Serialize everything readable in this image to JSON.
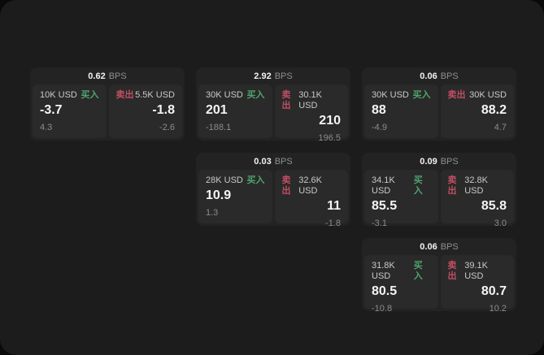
{
  "page": {
    "background_outer": "#0a0a0a",
    "background_page": "#1c1c1c",
    "card_background": "#232323",
    "panel_background": "#2a2a2a"
  },
  "labels": {
    "bps": "BPS",
    "buy": "买入",
    "sell": "卖出"
  },
  "colors": {
    "buy": "#4fa46e",
    "sell": "#c04f63",
    "price": "#f5f5f5",
    "delta": "#8c8c8c",
    "amount": "#c9c9c9"
  },
  "cards": [
    {
      "bps": "0.62",
      "grid": {
        "col": 1,
        "row": 1
      },
      "buy": {
        "amount": "10K USD",
        "price": "-3.7",
        "delta": "4.3"
      },
      "sell": {
        "amount": "5.5K USD",
        "price": "-1.8",
        "delta": "-2.6"
      }
    },
    {
      "bps": "2.92",
      "grid": {
        "col": 2,
        "row": 1
      },
      "buy": {
        "amount": "30K USD",
        "price": "201",
        "delta": "-188.1"
      },
      "sell": {
        "amount": "30.1K USD",
        "price": "210",
        "delta": "196.5"
      }
    },
    {
      "bps": "0.06",
      "grid": {
        "col": 3,
        "row": 1
      },
      "buy": {
        "amount": "30K USD",
        "price": "88",
        "delta": "-4.9"
      },
      "sell": {
        "amount": "30K USD",
        "price": "88.2",
        "delta": "4.7"
      }
    },
    {
      "bps": "0.03",
      "grid": {
        "col": 2,
        "row": 2
      },
      "buy": {
        "amount": "28K USD",
        "price": "10.9",
        "delta": "1.3"
      },
      "sell": {
        "amount": "32.6K USD",
        "price": "11",
        "delta": "-1.8"
      }
    },
    {
      "bps": "0.09",
      "grid": {
        "col": 3,
        "row": 2
      },
      "buy": {
        "amount": "34.1K USD",
        "price": "85.5",
        "delta": "-3.1"
      },
      "sell": {
        "amount": "32.8K USD",
        "price": "85.8",
        "delta": "3.0"
      }
    },
    {
      "bps": "0.06",
      "grid": {
        "col": 3,
        "row": 3
      },
      "buy": {
        "amount": "31.8K USD",
        "price": "80.5",
        "delta": "-10.8"
      },
      "sell": {
        "amount": "39.1K USD",
        "price": "80.7",
        "delta": "10.2"
      }
    }
  ]
}
